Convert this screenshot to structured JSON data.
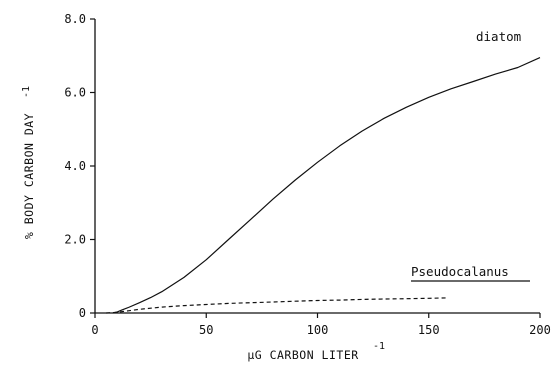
{
  "chart_data": {
    "type": "line",
    "xlabel": "µG CARBON LITER",
    "xlabel_exponent": "-1",
    "ylabel": "% BODY CARBON DAY",
    "ylabel_exponent": "-1",
    "xlim": [
      0,
      200
    ],
    "ylim": [
      0,
      8
    ],
    "x_ticks": [
      0,
      50,
      100,
      150,
      200
    ],
    "x_tick_labels": [
      "0",
      "50",
      "100",
      "150",
      "200"
    ],
    "y_ticks": [
      0,
      2,
      4,
      6,
      8
    ],
    "y_tick_labels": [
      "0",
      "2.0",
      "4.0",
      "6.0",
      "8.0"
    ],
    "grid": false,
    "legend": "none",
    "series": [
      {
        "name": "diatom",
        "style": "solid",
        "color": "#111111",
        "x": [
          8,
          10,
          12,
          15,
          20,
          25,
          30,
          40,
          50,
          60,
          70,
          80,
          90,
          100,
          110,
          120,
          130,
          140,
          150,
          160,
          170,
          180,
          190,
          200
        ],
        "y": [
          0,
          0.03,
          0.08,
          0.15,
          0.28,
          0.42,
          0.58,
          0.97,
          1.45,
          2.0,
          2.55,
          3.1,
          3.62,
          4.1,
          4.55,
          4.95,
          5.3,
          5.6,
          5.87,
          6.1,
          6.3,
          6.5,
          6.68,
          6.95
        ]
      },
      {
        "name": "Pseudocalanus",
        "style": "dashed",
        "underlined": true,
        "color": "#111111",
        "x": [
          5,
          10,
          15,
          20,
          30,
          40,
          50,
          60,
          70,
          80,
          90,
          100,
          110,
          120,
          130,
          140,
          150,
          158
        ],
        "y": [
          0,
          0.02,
          0.06,
          0.1,
          0.16,
          0.2,
          0.23,
          0.26,
          0.28,
          0.3,
          0.32,
          0.34,
          0.35,
          0.37,
          0.38,
          0.39,
          0.4,
          0.41
        ]
      }
    ]
  }
}
